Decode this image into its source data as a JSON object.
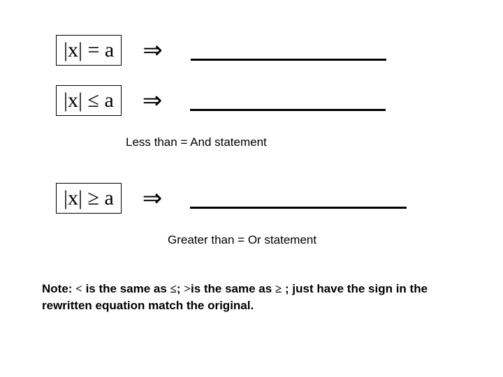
{
  "rows": [
    {
      "expr": "|x| = a",
      "blank_width": 280
    },
    {
      "expr": "|x| ≤ a",
      "blank_width": 280
    }
  ],
  "caption1": "Less than = And statement",
  "caption1_indent": 120,
  "row3": {
    "expr": "|x| ≥ a",
    "blank_width": 310
  },
  "caption2": "Greater than = Or statement",
  "caption2_indent": 180,
  "arrow_glyph": "⇒",
  "note": {
    "prefix": "Note: ",
    "sym1": "<",
    "mid1": " is the same as ",
    "sym2": "≤",
    "sep": "; ",
    "sym3": ">",
    "mid2": "is the same as ",
    "sym4": "≥",
    "tail": " ; just have the sign in the rewritten equation match the original."
  },
  "colors": {
    "text": "#000000",
    "bg": "#ffffff",
    "border": "#000000"
  },
  "fontsizes": {
    "expr": 30,
    "arrow": 34,
    "caption": 17,
    "note": 17
  }
}
